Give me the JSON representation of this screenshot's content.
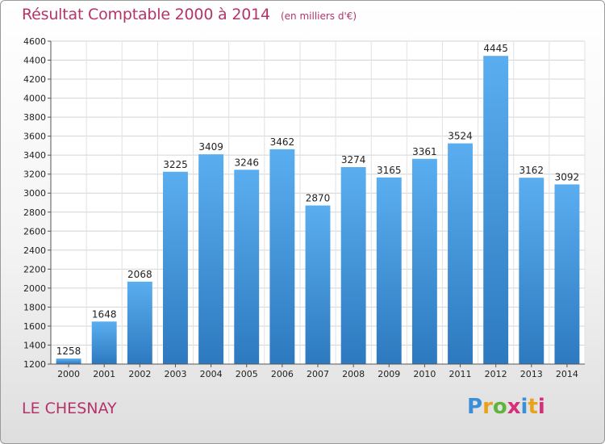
{
  "title": "Résultat Comptable 2000 à 2014",
  "subtitle": "(en milliers d'€)",
  "location": "LE CHESNAY",
  "logo": {
    "text": "Proxiti",
    "letter_colors": [
      "#3a8fd8",
      "#e8a21c",
      "#5fb43a",
      "#d62f7a",
      "#3a8fd8",
      "#e8a21c",
      "#d62f7a"
    ]
  },
  "colors": {
    "title": "#b4346a",
    "bar_light": "#5aaef0",
    "bar_dark": "#2d79bf"
  },
  "chart_data": {
    "type": "bar",
    "title": "Résultat Comptable 2000 à 2014",
    "subtitle": "(en milliers d'€)",
    "categories": [
      "2000",
      "2001",
      "2002",
      "2003",
      "2004",
      "2005",
      "2006",
      "2007",
      "2008",
      "2009",
      "2010",
      "2011",
      "2012",
      "2013",
      "2014"
    ],
    "values": [
      1258,
      1648,
      2068,
      3225,
      3409,
      3246,
      3462,
      2870,
      3274,
      3165,
      3361,
      3524,
      4445,
      3162,
      3092
    ],
    "ylim": [
      1200,
      4600
    ],
    "yticks": [
      1200,
      1400,
      1600,
      1800,
      2000,
      2200,
      2400,
      2600,
      2800,
      3000,
      3200,
      3400,
      3600,
      3800,
      4000,
      4200,
      4400,
      4600
    ],
    "grid": true,
    "xlabel": "",
    "ylabel": ""
  }
}
